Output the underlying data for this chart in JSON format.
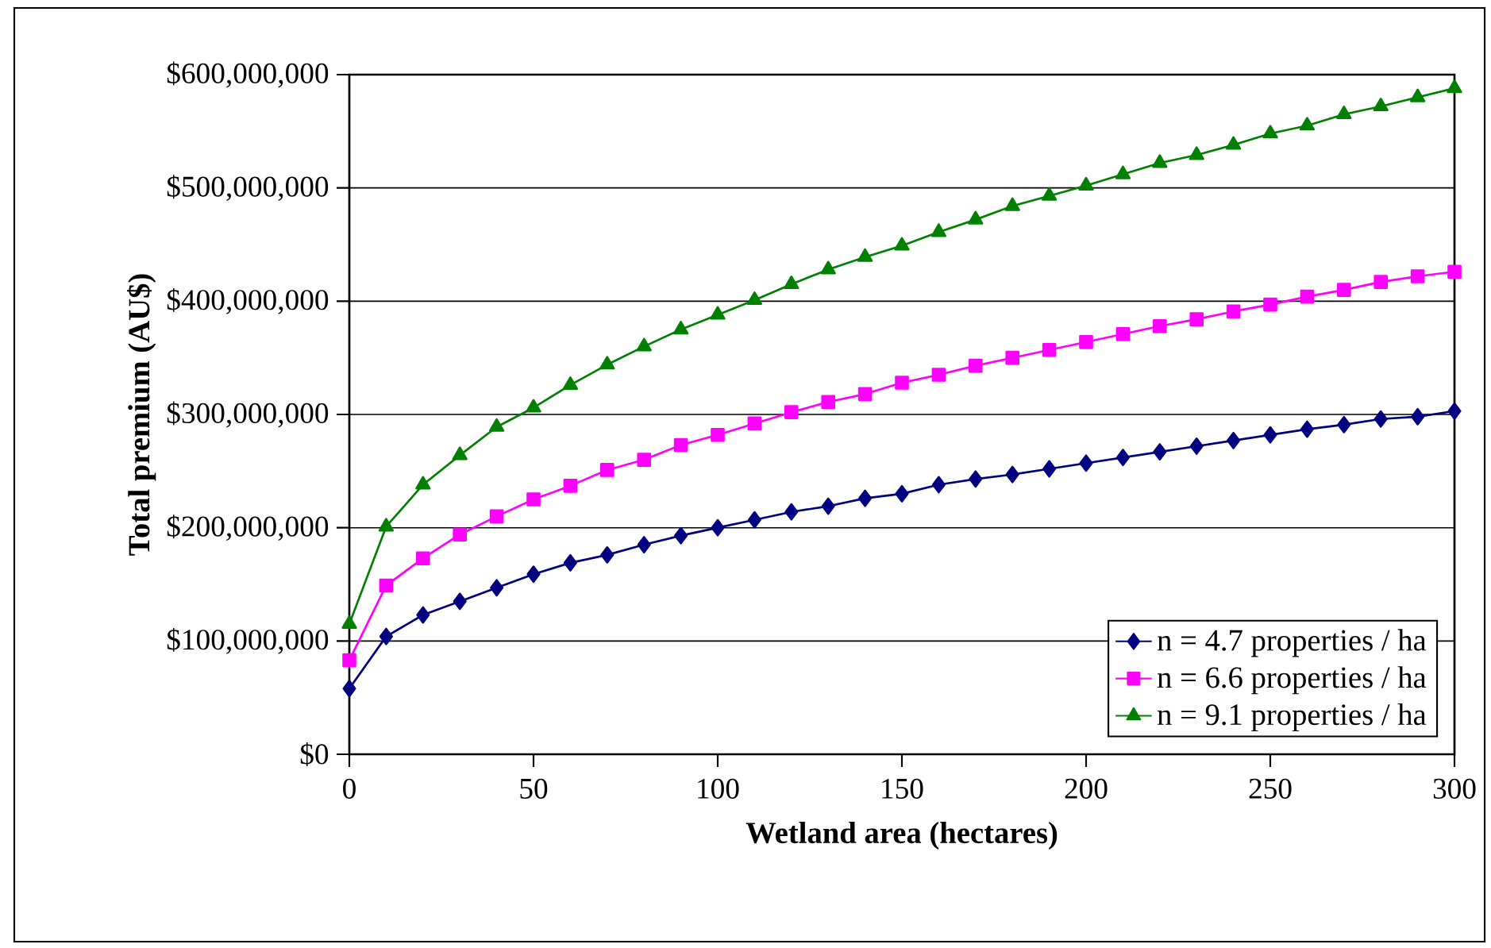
{
  "chart_data": {
    "type": "line",
    "xlabel": "Wetland area (hectares)",
    "ylabel": "Total premium (AU$)",
    "x": [
      0,
      10,
      20,
      30,
      40,
      50,
      60,
      70,
      80,
      90,
      100,
      110,
      120,
      130,
      140,
      150,
      160,
      170,
      180,
      190,
      200,
      210,
      220,
      230,
      240,
      250,
      260,
      270,
      280,
      290,
      300
    ],
    "series": [
      {
        "name": "n = 4.7 properties / ha",
        "color": "#000080",
        "marker": "diamond",
        "values": [
          58000000,
          104000000,
          123000000,
          135000000,
          147000000,
          159000000,
          169000000,
          176000000,
          185000000,
          193000000,
          200000000,
          207000000,
          214000000,
          219000000,
          226000000,
          230000000,
          238000000,
          243000000,
          247000000,
          252000000,
          257000000,
          262000000,
          267000000,
          272000000,
          277000000,
          282000000,
          287000000,
          291000000,
          296000000,
          298000000,
          303000000
        ]
      },
      {
        "name": "n = 6.6 properties / ha",
        "color": "#ff00ff",
        "marker": "square",
        "values": [
          83000000,
          149000000,
          173000000,
          194000000,
          210000000,
          225000000,
          237000000,
          251000000,
          260000000,
          273000000,
          282000000,
          292000000,
          302000000,
          311000000,
          318000000,
          328000000,
          335000000,
          343000000,
          350000000,
          357000000,
          364000000,
          371000000,
          378000000,
          384000000,
          391000000,
          397000000,
          404000000,
          410000000,
          417000000,
          422000000,
          426000000
        ]
      },
      {
        "name": "n = 9.1 properties / ha",
        "color": "#008000",
        "marker": "triangle",
        "values": [
          115000000,
          201000000,
          238000000,
          264000000,
          289000000,
          306000000,
          326000000,
          344000000,
          360000000,
          375000000,
          388000000,
          401000000,
          415000000,
          428000000,
          439000000,
          449000000,
          461000000,
          472000000,
          484000000,
          493000000,
          502000000,
          512000000,
          522000000,
          529000000,
          538000000,
          548000000,
          555000000,
          565000000,
          572000000,
          580000000,
          588000000
        ]
      }
    ],
    "xlim": [
      0,
      300
    ],
    "xticks": [
      0,
      50,
      100,
      150,
      200,
      250,
      300
    ],
    "ylim": [
      0,
      600000000
    ],
    "yticks": [
      {
        "value": 0,
        "label": "$0"
      },
      {
        "value": 100000000,
        "label": "$100,000,000"
      },
      {
        "value": 200000000,
        "label": "$200,000,000"
      },
      {
        "value": 300000000,
        "label": "$300,000,000"
      },
      {
        "value": 400000000,
        "label": "$400,000,000"
      },
      {
        "value": 500000000,
        "label": "$500,000,000"
      },
      {
        "value": 600000000,
        "label": "$600,000,000"
      }
    ],
    "grid": "y",
    "legend": "bottom right",
    "line_style": "solid"
  }
}
